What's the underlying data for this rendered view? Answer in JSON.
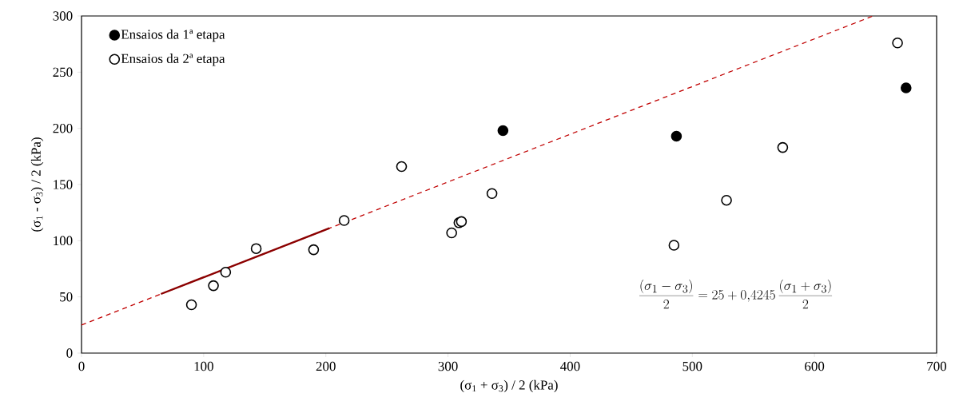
{
  "chart_data": {
    "type": "scatter",
    "xlabel": "(σ$_{1}$ + σ$_{3}$) / 2  (kPa)",
    "ylabel": "(σ$_{1}$ - σ$_{3}$) / 2  (kPa)",
    "xlim": [
      0,
      700
    ],
    "ylim": [
      0,
      300
    ],
    "xticks": [
      0,
      100,
      200,
      300,
      400,
      500,
      600,
      700
    ],
    "yticks": [
      0,
      50,
      100,
      150,
      200,
      250,
      300
    ],
    "legend": "top left",
    "grid": false,
    "series": [
      {
        "name": "Ensaios da 1ª etapa",
        "color": "#000000",
        "marker": "circle",
        "x": [
          345,
          487,
          675
        ],
        "values": [
          198,
          193,
          236
        ]
      },
      {
        "name": "Ensaios da 2ª etapa",
        "color": "#000000",
        "marker": "circle_open",
        "x": [
          90,
          108,
          118,
          143,
          190,
          215,
          262,
          303,
          309,
          311,
          336,
          485,
          528,
          574,
          668
        ],
        "values": [
          43,
          60,
          72,
          93,
          92,
          118,
          166,
          107,
          116,
          117,
          142,
          96,
          136,
          183,
          276
        ]
      },
      {
        "type": "line",
        "color": "#c00000",
        "line_style": "dashed",
        "x": [
          0,
          648
        ],
        "values": [
          25,
          300
        ]
      },
      {
        "type": "line",
        "color": "#8b0000",
        "line_style": "solid",
        "x": [
          65,
          203
        ],
        "values": [
          52.6,
          111.2
        ]
      }
    ],
    "annotations": [
      "\\frac{(\\sigma_1-\\sigma_3)}{2}=25+0{,}4245\\,\\frac{(\\sigma_1+\\sigma_3)}{2}"
    ]
  }
}
